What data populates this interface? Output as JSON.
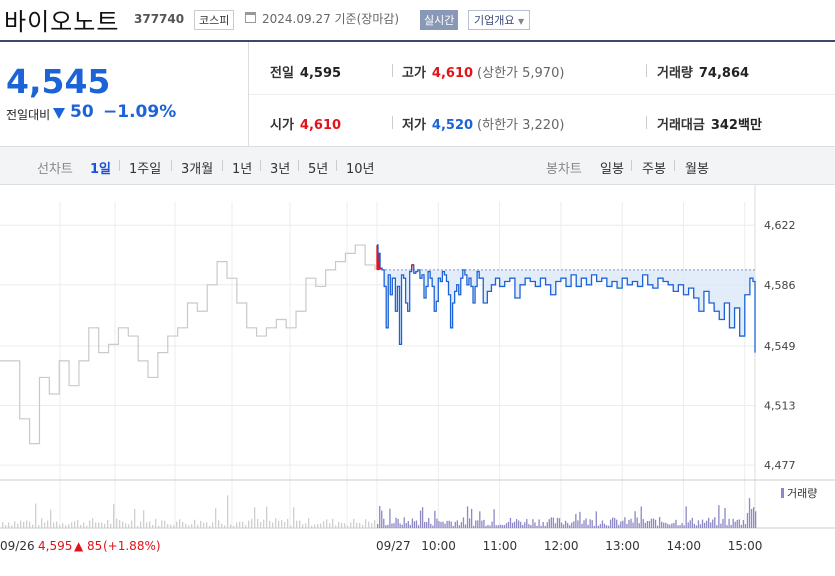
{
  "header": {
    "stock_name": "바이오노트",
    "stock_code": "377740",
    "market": "코스피",
    "basis": "2024.09.27 기준(장마감)",
    "realtime_label": "실시간",
    "corp_overview_label": "기업개요"
  },
  "price": {
    "current": "4,545",
    "change_label": "전일대비",
    "change_value": "50",
    "change_pct": "−1.09%"
  },
  "stats": {
    "prev_label": "전일",
    "prev_value": "4,595",
    "high_label": "고가",
    "high_value": "4,610",
    "upper_limit": "(상한가 5,970)",
    "volume_label": "거래량",
    "volume_value": "74,864",
    "open_label": "시가",
    "open_value": "4,610",
    "low_label": "저가",
    "low_value": "4,520",
    "lower_limit": "(하한가 3,220)",
    "amount_label": "거래대금",
    "amount_value": "342",
    "amount_unit": "백만"
  },
  "tabs": {
    "line_label": "선차트",
    "line_items": [
      "1일",
      "1주일",
      "3개월",
      "1년",
      "3년",
      "5년",
      "10년"
    ],
    "candle_label": "봉차트",
    "candle_items": [
      "일봉",
      "주봉",
      "월봉"
    ]
  },
  "colors": {
    "up": "#e0121b",
    "down": "#1d63d8",
    "prev_line": "#c9c9c9",
    "area_fill": "#dbe8f8",
    "volume": "#8d87c6"
  },
  "chart_data": {
    "type": "line",
    "ylim": [
      4468,
      4630
    ],
    "y_ticks": [
      "4,622",
      "4,586",
      "4,549",
      "4,513",
      "4,477"
    ],
    "x_ticks": [
      "09/26",
      "09/27",
      "10:00",
      "11:00",
      "12:00",
      "13:00",
      "14:00",
      "15:00"
    ],
    "reference_price": 4595,
    "prev_day_footer": {
      "date": "09/26",
      "price": "4,595",
      "change": "▲ 85",
      "pct": "(+1.88%)"
    },
    "volume_label": "거래량",
    "prev_day": [
      [
        0,
        4540
      ],
      [
        1,
        4540
      ],
      [
        2,
        4505
      ],
      [
        3,
        4490
      ],
      [
        4,
        4530
      ],
      [
        5,
        4520
      ],
      [
        6,
        4540
      ],
      [
        7,
        4525
      ],
      [
        8,
        4540
      ],
      [
        9,
        4560
      ],
      [
        10,
        4545
      ],
      [
        11,
        4550
      ],
      [
        12,
        4560
      ],
      [
        13,
        4555
      ],
      [
        14,
        4540
      ],
      [
        15,
        4530
      ],
      [
        16,
        4545
      ],
      [
        17,
        4555
      ],
      [
        18,
        4560
      ],
      [
        19,
        4575
      ],
      [
        20,
        4570
      ],
      [
        21,
        4586
      ],
      [
        22,
        4600
      ],
      [
        23,
        4590
      ],
      [
        24,
        4575
      ],
      [
        25,
        4560
      ],
      [
        26,
        4555
      ],
      [
        27,
        4560
      ],
      [
        28,
        4565
      ],
      [
        29,
        4560
      ],
      [
        30,
        4570
      ],
      [
        31,
        4590
      ],
      [
        32,
        4585
      ],
      [
        33,
        4595
      ],
      [
        34,
        4600
      ],
      [
        35,
        4605
      ],
      [
        36,
        4610
      ],
      [
        37,
        4598
      ],
      [
        38,
        4595
      ]
    ],
    "today_time_ticks": {
      "start": "09:00",
      "tick_minutes": [
        60,
        120,
        180,
        240,
        300,
        360
      ]
    },
    "today": [
      [
        0,
        4610
      ],
      [
        1,
        4600
      ],
      [
        2,
        4605
      ],
      [
        3,
        4596
      ],
      [
        5,
        4595
      ],
      [
        7,
        4585
      ],
      [
        9,
        4560
      ],
      [
        11,
        4592
      ],
      [
        13,
        4580
      ],
      [
        15,
        4590
      ],
      [
        18,
        4570
      ],
      [
        20,
        4585
      ],
      [
        22,
        4550
      ],
      [
        24,
        4592
      ],
      [
        26,
        4590
      ],
      [
        28,
        4575
      ],
      [
        30,
        4570
      ],
      [
        32,
        4594
      ],
      [
        34,
        4598
      ],
      [
        36,
        4593
      ],
      [
        38,
        4594
      ],
      [
        40,
        4595
      ],
      [
        42,
        4590
      ],
      [
        44,
        4592
      ],
      [
        46,
        4578
      ],
      [
        48,
        4585
      ],
      [
        50,
        4594
      ],
      [
        52,
        4590
      ],
      [
        54,
        4585
      ],
      [
        56,
        4570
      ],
      [
        58,
        4576
      ],
      [
        60,
        4590
      ],
      [
        62,
        4588
      ],
      [
        64,
        4594
      ],
      [
        66,
        4592
      ],
      [
        68,
        4588
      ],
      [
        70,
        4580
      ],
      [
        72,
        4560
      ],
      [
        74,
        4575
      ],
      [
        76,
        4582
      ],
      [
        78,
        4586
      ],
      [
        80,
        4580
      ],
      [
        82,
        4590
      ],
      [
        84,
        4595
      ],
      [
        86,
        4592
      ],
      [
        88,
        4586
      ],
      [
        90,
        4590
      ],
      [
        92,
        4585
      ],
      [
        94,
        4575
      ],
      [
        96,
        4585
      ],
      [
        98,
        4594
      ],
      [
        100,
        4590
      ],
      [
        104,
        4575
      ],
      [
        108,
        4582
      ],
      [
        112,
        4586
      ],
      [
        116,
        4590
      ],
      [
        120,
        4585
      ],
      [
        125,
        4588
      ],
      [
        130,
        4590
      ],
      [
        135,
        4578
      ],
      [
        140,
        4586
      ],
      [
        145,
        4590
      ],
      [
        150,
        4588
      ],
      [
        155,
        4585
      ],
      [
        160,
        4590
      ],
      [
        165,
        4586
      ],
      [
        170,
        4580
      ],
      [
        175,
        4588
      ],
      [
        180,
        4590
      ],
      [
        185,
        4585
      ],
      [
        190,
        4592
      ],
      [
        195,
        4585
      ],
      [
        200,
        4590
      ],
      [
        205,
        4586
      ],
      [
        210,
        4592
      ],
      [
        215,
        4588
      ],
      [
        220,
        4590
      ],
      [
        225,
        4585
      ],
      [
        230,
        4588
      ],
      [
        235,
        4584
      ],
      [
        240,
        4590
      ],
      [
        245,
        4586
      ],
      [
        250,
        4588
      ],
      [
        255,
        4585
      ],
      [
        260,
        4592
      ],
      [
        265,
        4586
      ],
      [
        270,
        4584
      ],
      [
        275,
        4590
      ],
      [
        280,
        4588
      ],
      [
        285,
        4586
      ],
      [
        290,
        4582
      ],
      [
        295,
        4586
      ],
      [
        300,
        4580
      ],
      [
        305,
        4584
      ],
      [
        310,
        4578
      ],
      [
        315,
        4570
      ],
      [
        320,
        4582
      ],
      [
        325,
        4575
      ],
      [
        330,
        4570
      ],
      [
        335,
        4565
      ],
      [
        340,
        4575
      ],
      [
        345,
        4560
      ],
      [
        350,
        4572
      ],
      [
        355,
        4555
      ],
      [
        360,
        4580
      ],
      [
        365,
        4590
      ],
      [
        368,
        4588
      ],
      [
        370,
        4545
      ]
    ]
  }
}
